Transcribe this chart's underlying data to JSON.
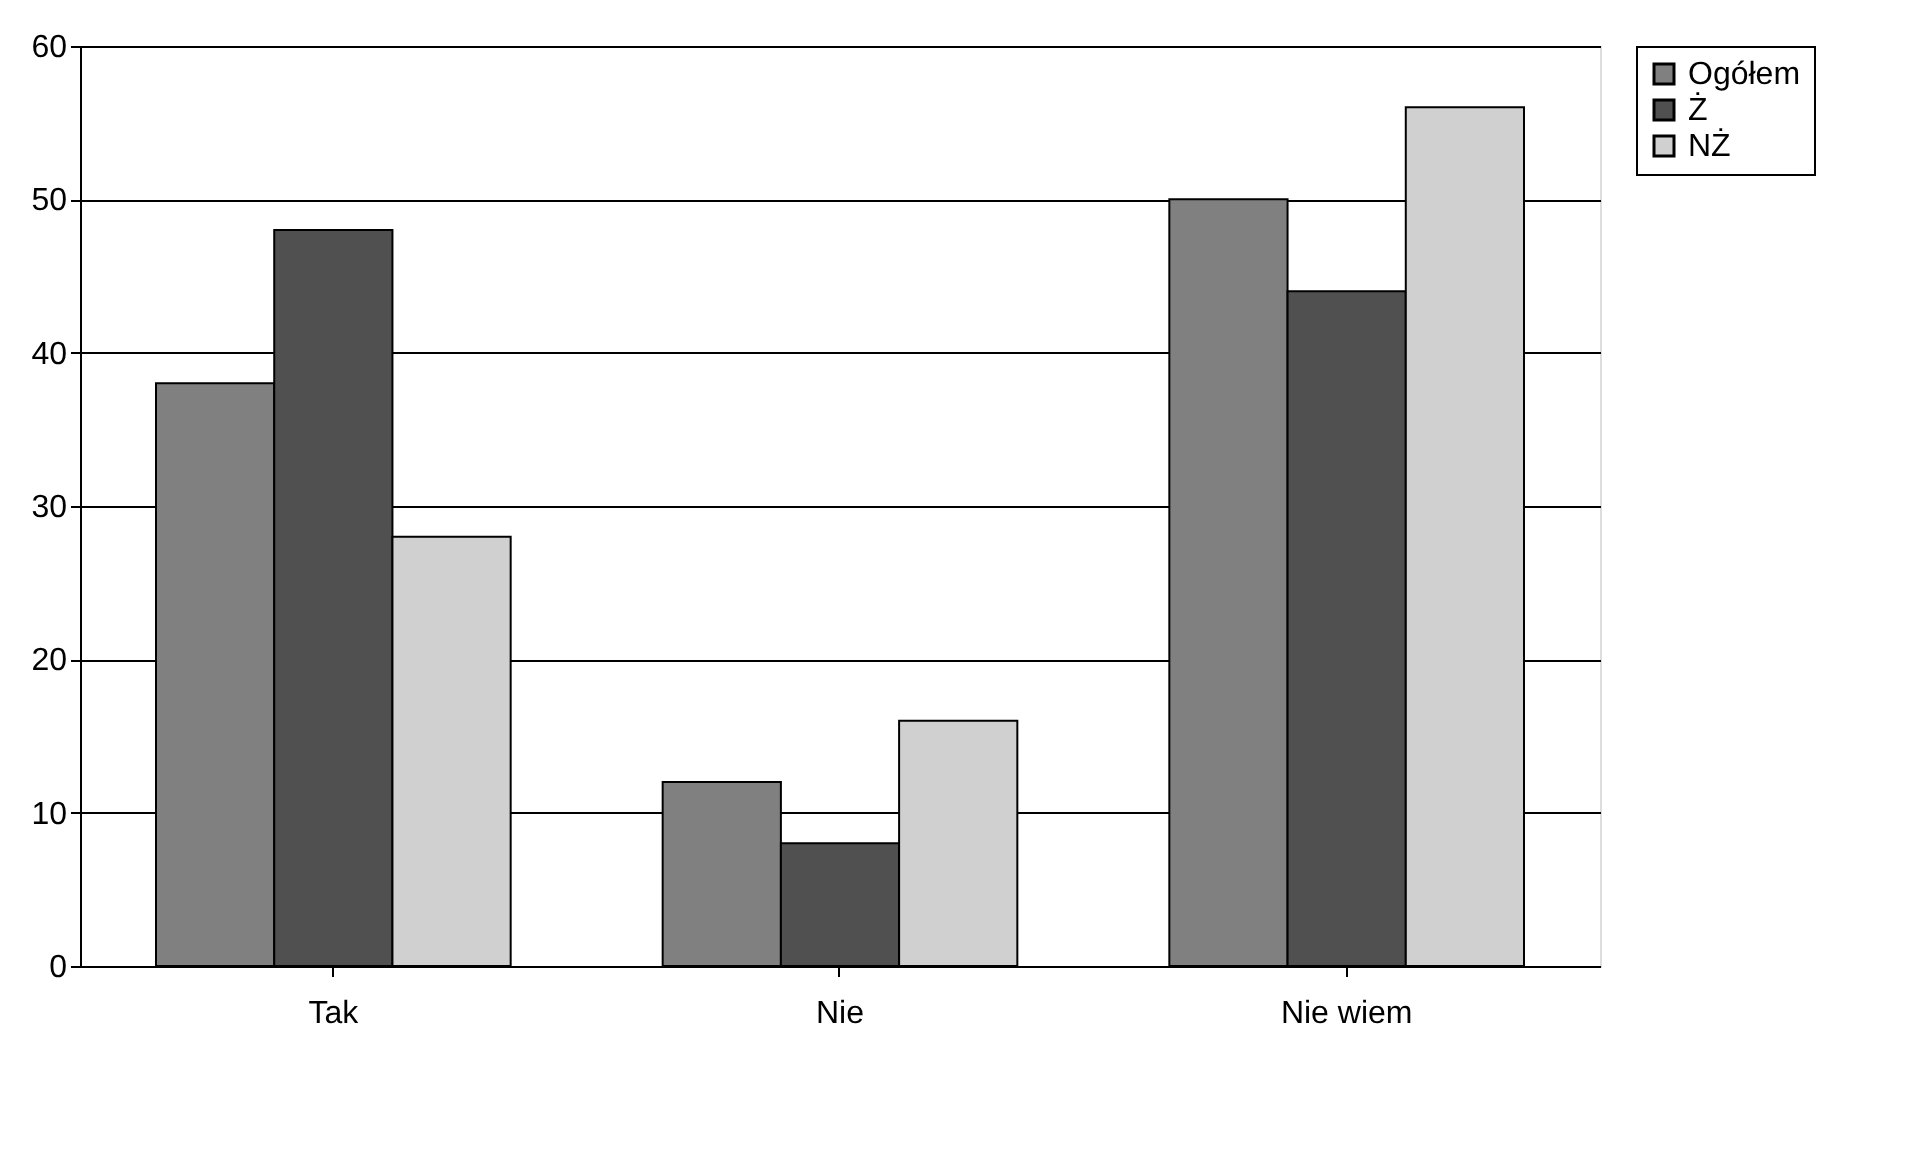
{
  "chart_data": {
    "type": "bar",
    "categories": [
      "Tak",
      "Nie",
      "Nie wiem"
    ],
    "series": [
      {
        "name": "Ogółem",
        "color": "#808080",
        "values": [
          38,
          12,
          50
        ]
      },
      {
        "name": "Ż",
        "color": "#505050",
        "values": [
          48,
          8,
          44
        ]
      },
      {
        "name": "NŻ",
        "color": "#d0d0d0",
        "values": [
          28,
          16,
          56
        ]
      }
    ],
    "ylim": [
      0,
      60
    ],
    "yticks": [
      0,
      10,
      20,
      30,
      40,
      50,
      60
    ],
    "grid": "y",
    "legend": "right"
  }
}
